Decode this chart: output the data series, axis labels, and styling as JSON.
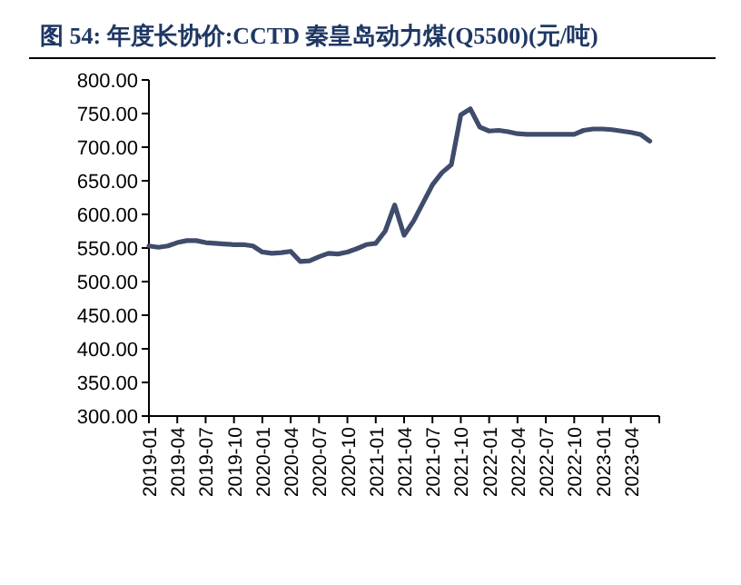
{
  "chart_data": {
    "type": "line",
    "title": "图 54:  年度长协价:CCTD 秦皇岛动力煤(Q5500)(元/吨)",
    "x": [
      "2019-01",
      "2019-02",
      "2019-03",
      "2019-04",
      "2019-05",
      "2019-06",
      "2019-07",
      "2019-08",
      "2019-09",
      "2019-10",
      "2019-11",
      "2019-12",
      "2020-01",
      "2020-02",
      "2020-03",
      "2020-04",
      "2020-05",
      "2020-06",
      "2020-07",
      "2020-08",
      "2020-09",
      "2020-10",
      "2020-11",
      "2020-12",
      "2021-01",
      "2021-02",
      "2021-03",
      "2021-04",
      "2021-05",
      "2021-06",
      "2021-07",
      "2021-08",
      "2021-09",
      "2021-10",
      "2021-11",
      "2021-12",
      "2022-01",
      "2022-02",
      "2022-03",
      "2022-04",
      "2022-05",
      "2022-06",
      "2022-07",
      "2022-08",
      "2022-09",
      "2022-10",
      "2022-11",
      "2022-12",
      "2023-01",
      "2023-02",
      "2023-03",
      "2023-04",
      "2023-05",
      "2023-06"
    ],
    "series": [
      {
        "color": "#3f4c6b",
        "values": [
          553,
          551,
          553,
          558,
          561,
          561,
          558,
          557,
          556,
          555,
          555,
          553,
          544,
          542,
          543,
          545,
          530,
          531,
          537,
          542,
          541,
          544,
          549,
          555,
          557,
          575,
          614,
          569,
          590,
          617,
          644,
          662,
          674,
          748,
          757,
          730,
          724,
          725,
          723,
          720,
          719,
          719,
          719,
          719,
          719,
          719,
          725,
          727,
          727,
          726,
          724,
          722,
          719,
          709
        ]
      }
    ],
    "xlim": [
      "2019-01",
      "2023-07"
    ],
    "xticks": [
      "2019-01",
      "2019-04",
      "2019-07",
      "2019-10",
      "2020-01",
      "2020-04",
      "2020-07",
      "2020-10",
      "2021-01",
      "2021-04",
      "2021-07",
      "2021-10",
      "2022-01",
      "2022-04",
      "2022-07",
      "2022-10",
      "2023-01",
      "2023-04"
    ],
    "ylim": [
      300,
      800
    ],
    "yticks": [
      {
        "value": 300,
        "label": "300.00"
      },
      {
        "value": 350,
        "label": "350.00"
      },
      {
        "value": 400,
        "label": "400.00"
      },
      {
        "value": 450,
        "label": "450.00"
      },
      {
        "value": 500,
        "label": "500.00"
      },
      {
        "value": 550,
        "label": "550.00"
      },
      {
        "value": 600,
        "label": "600.00"
      },
      {
        "value": 650,
        "label": "650.00"
      },
      {
        "value": 700,
        "label": "700.00"
      },
      {
        "value": 750,
        "label": "750.00"
      },
      {
        "value": 800,
        "label": "800.00"
      }
    ],
    "grid": false,
    "line_style": "solid",
    "marker": "none"
  }
}
